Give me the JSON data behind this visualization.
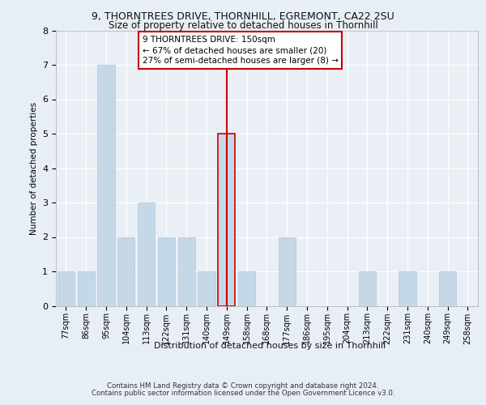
{
  "title1": "9, THORNTREES DRIVE, THORNHILL, EGREMONT, CA22 2SU",
  "title2": "Size of property relative to detached houses in Thornhill",
  "xlabel": "Distribution of detached houses by size in Thornhill",
  "ylabel": "Number of detached properties",
  "footer1": "Contains HM Land Registry data © Crown copyright and database right 2024.",
  "footer2": "Contains public sector information licensed under the Open Government Licence v3.0.",
  "annotation_line1": "9 THORNTREES DRIVE: 150sqm",
  "annotation_line2": "← 67% of detached houses are smaller (20)",
  "annotation_line3": "27% of semi-detached houses are larger (8) →",
  "bar_color": "#c5d8e8",
  "bar_edge_color": "#b0c8dc",
  "highlight_color": "#cc0000",
  "categories": [
    "77sqm",
    "86sqm",
    "95sqm",
    "104sqm",
    "113sqm",
    "122sqm",
    "131sqm",
    "140sqm",
    "149sqm",
    "158sqm",
    "168sqm",
    "177sqm",
    "186sqm",
    "195sqm",
    "204sqm",
    "213sqm",
    "222sqm",
    "231sqm",
    "240sqm",
    "249sqm",
    "258sqm"
  ],
  "values": [
    1,
    1,
    7,
    2,
    3,
    2,
    2,
    1,
    5,
    1,
    0,
    2,
    0,
    0,
    0,
    1,
    0,
    1,
    0,
    1,
    0
  ],
  "highlight_index": 8,
  "ylim": [
    0,
    8
  ],
  "yticks": [
    0,
    1,
    2,
    3,
    4,
    5,
    6,
    7,
    8
  ],
  "bg_color": "#e8eef5",
  "plot_bg_color": "#eaeff6"
}
